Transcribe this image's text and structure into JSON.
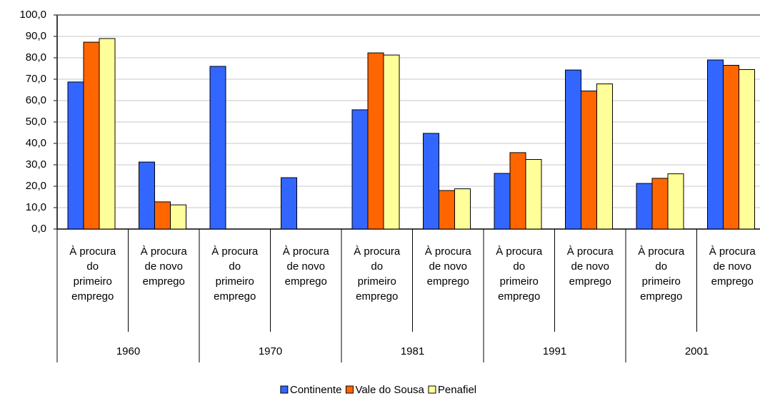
{
  "chart_data": {
    "type": "bar",
    "categories": [
      "À procura do primeiro emprego",
      "À procura de novo emprego",
      "À procura do primeiro emprego",
      "À procura de novo emprego",
      "À procura do primeiro emprego",
      "À procura de novo emprego",
      "À procura do primeiro emprego",
      "À procura de novo emprego",
      "À procura do primeiro emprego",
      "À procura de novo emprego"
    ],
    "groups": [
      "1960",
      "1970",
      "1981",
      "1991",
      "2001"
    ],
    "series": [
      {
        "name": "Continente",
        "color": "#3366ff",
        "values": [
          68.7,
          31.3,
          76,
          24,
          55.7,
          44.7,
          26,
          74.3,
          21.3,
          79
        ]
      },
      {
        "name": "Vale do Sousa",
        "color": "#ff6600",
        "values": [
          87.3,
          12.7,
          null,
          null,
          82.3,
          18,
          35.7,
          64.5,
          23.7,
          76.5
        ]
      },
      {
        "name": "Penafiel",
        "color": "#ffff99",
        "values": [
          89,
          11.3,
          null,
          null,
          81.3,
          18.8,
          32.5,
          67.8,
          25.8,
          74.5
        ]
      }
    ],
    "ylim": [
      0,
      100
    ],
    "yticks": [
      {
        "value": 0,
        "label": "0,0"
      },
      {
        "value": 10,
        "label": "10,0"
      },
      {
        "value": 20,
        "label": "20,0"
      },
      {
        "value": 30,
        "label": "30,0"
      },
      {
        "value": 40,
        "label": "40,0"
      },
      {
        "value": 50,
        "label": "50,0"
      },
      {
        "value": 60,
        "label": "60,0"
      },
      {
        "value": 70,
        "label": "70,0"
      },
      {
        "value": 80,
        "label": "80,0"
      },
      {
        "value": 90,
        "label": "90,0"
      },
      {
        "value": 100,
        "label": "100,0"
      }
    ],
    "grid": true,
    "legend": "bottom"
  }
}
